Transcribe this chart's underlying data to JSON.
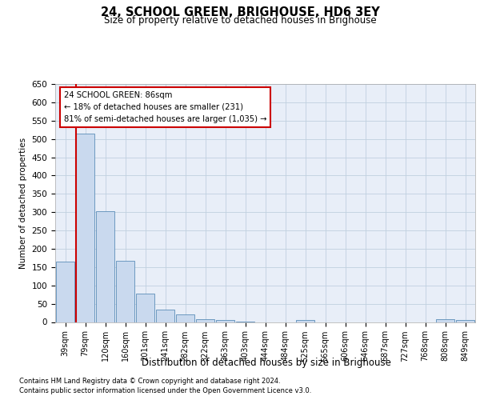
{
  "title": "24, SCHOOL GREEN, BRIGHOUSE, HD6 3EY",
  "subtitle": "Size of property relative to detached houses in Brighouse",
  "xlabel": "Distribution of detached houses by size in Brighouse",
  "ylabel": "Number of detached properties",
  "bins": [
    "39sqm",
    "79sqm",
    "120sqm",
    "160sqm",
    "201sqm",
    "241sqm",
    "282sqm",
    "322sqm",
    "363sqm",
    "403sqm",
    "444sqm",
    "484sqm",
    "525sqm",
    "565sqm",
    "606sqm",
    "646sqm",
    "687sqm",
    "727sqm",
    "768sqm",
    "808sqm",
    "849sqm"
  ],
  "bar_heights": [
    165,
    515,
    302,
    168,
    77,
    33,
    20,
    7,
    5,
    1,
    0,
    0,
    6,
    0,
    0,
    0,
    0,
    0,
    0,
    7,
    5
  ],
  "bar_color": "#c9d9ee",
  "bar_edge_color": "#5b8db8",
  "grid_color": "#c0cfe0",
  "background_color": "#e8eef8",
  "red_line_color": "#cc0000",
  "annotation_text": "24 SCHOOL GREEN: 86sqm\n← 18% of detached houses are smaller (231)\n81% of semi-detached houses are larger (1,035) →",
  "annotation_box_color": "#cc0000",
  "ylim": [
    0,
    650
  ],
  "yticks": [
    0,
    50,
    100,
    150,
    200,
    250,
    300,
    350,
    400,
    450,
    500,
    550,
    600,
    650
  ],
  "footer_line1": "Contains HM Land Registry data © Crown copyright and database right 2024.",
  "footer_line2": "Contains public sector information licensed under the Open Government Licence v3.0."
}
